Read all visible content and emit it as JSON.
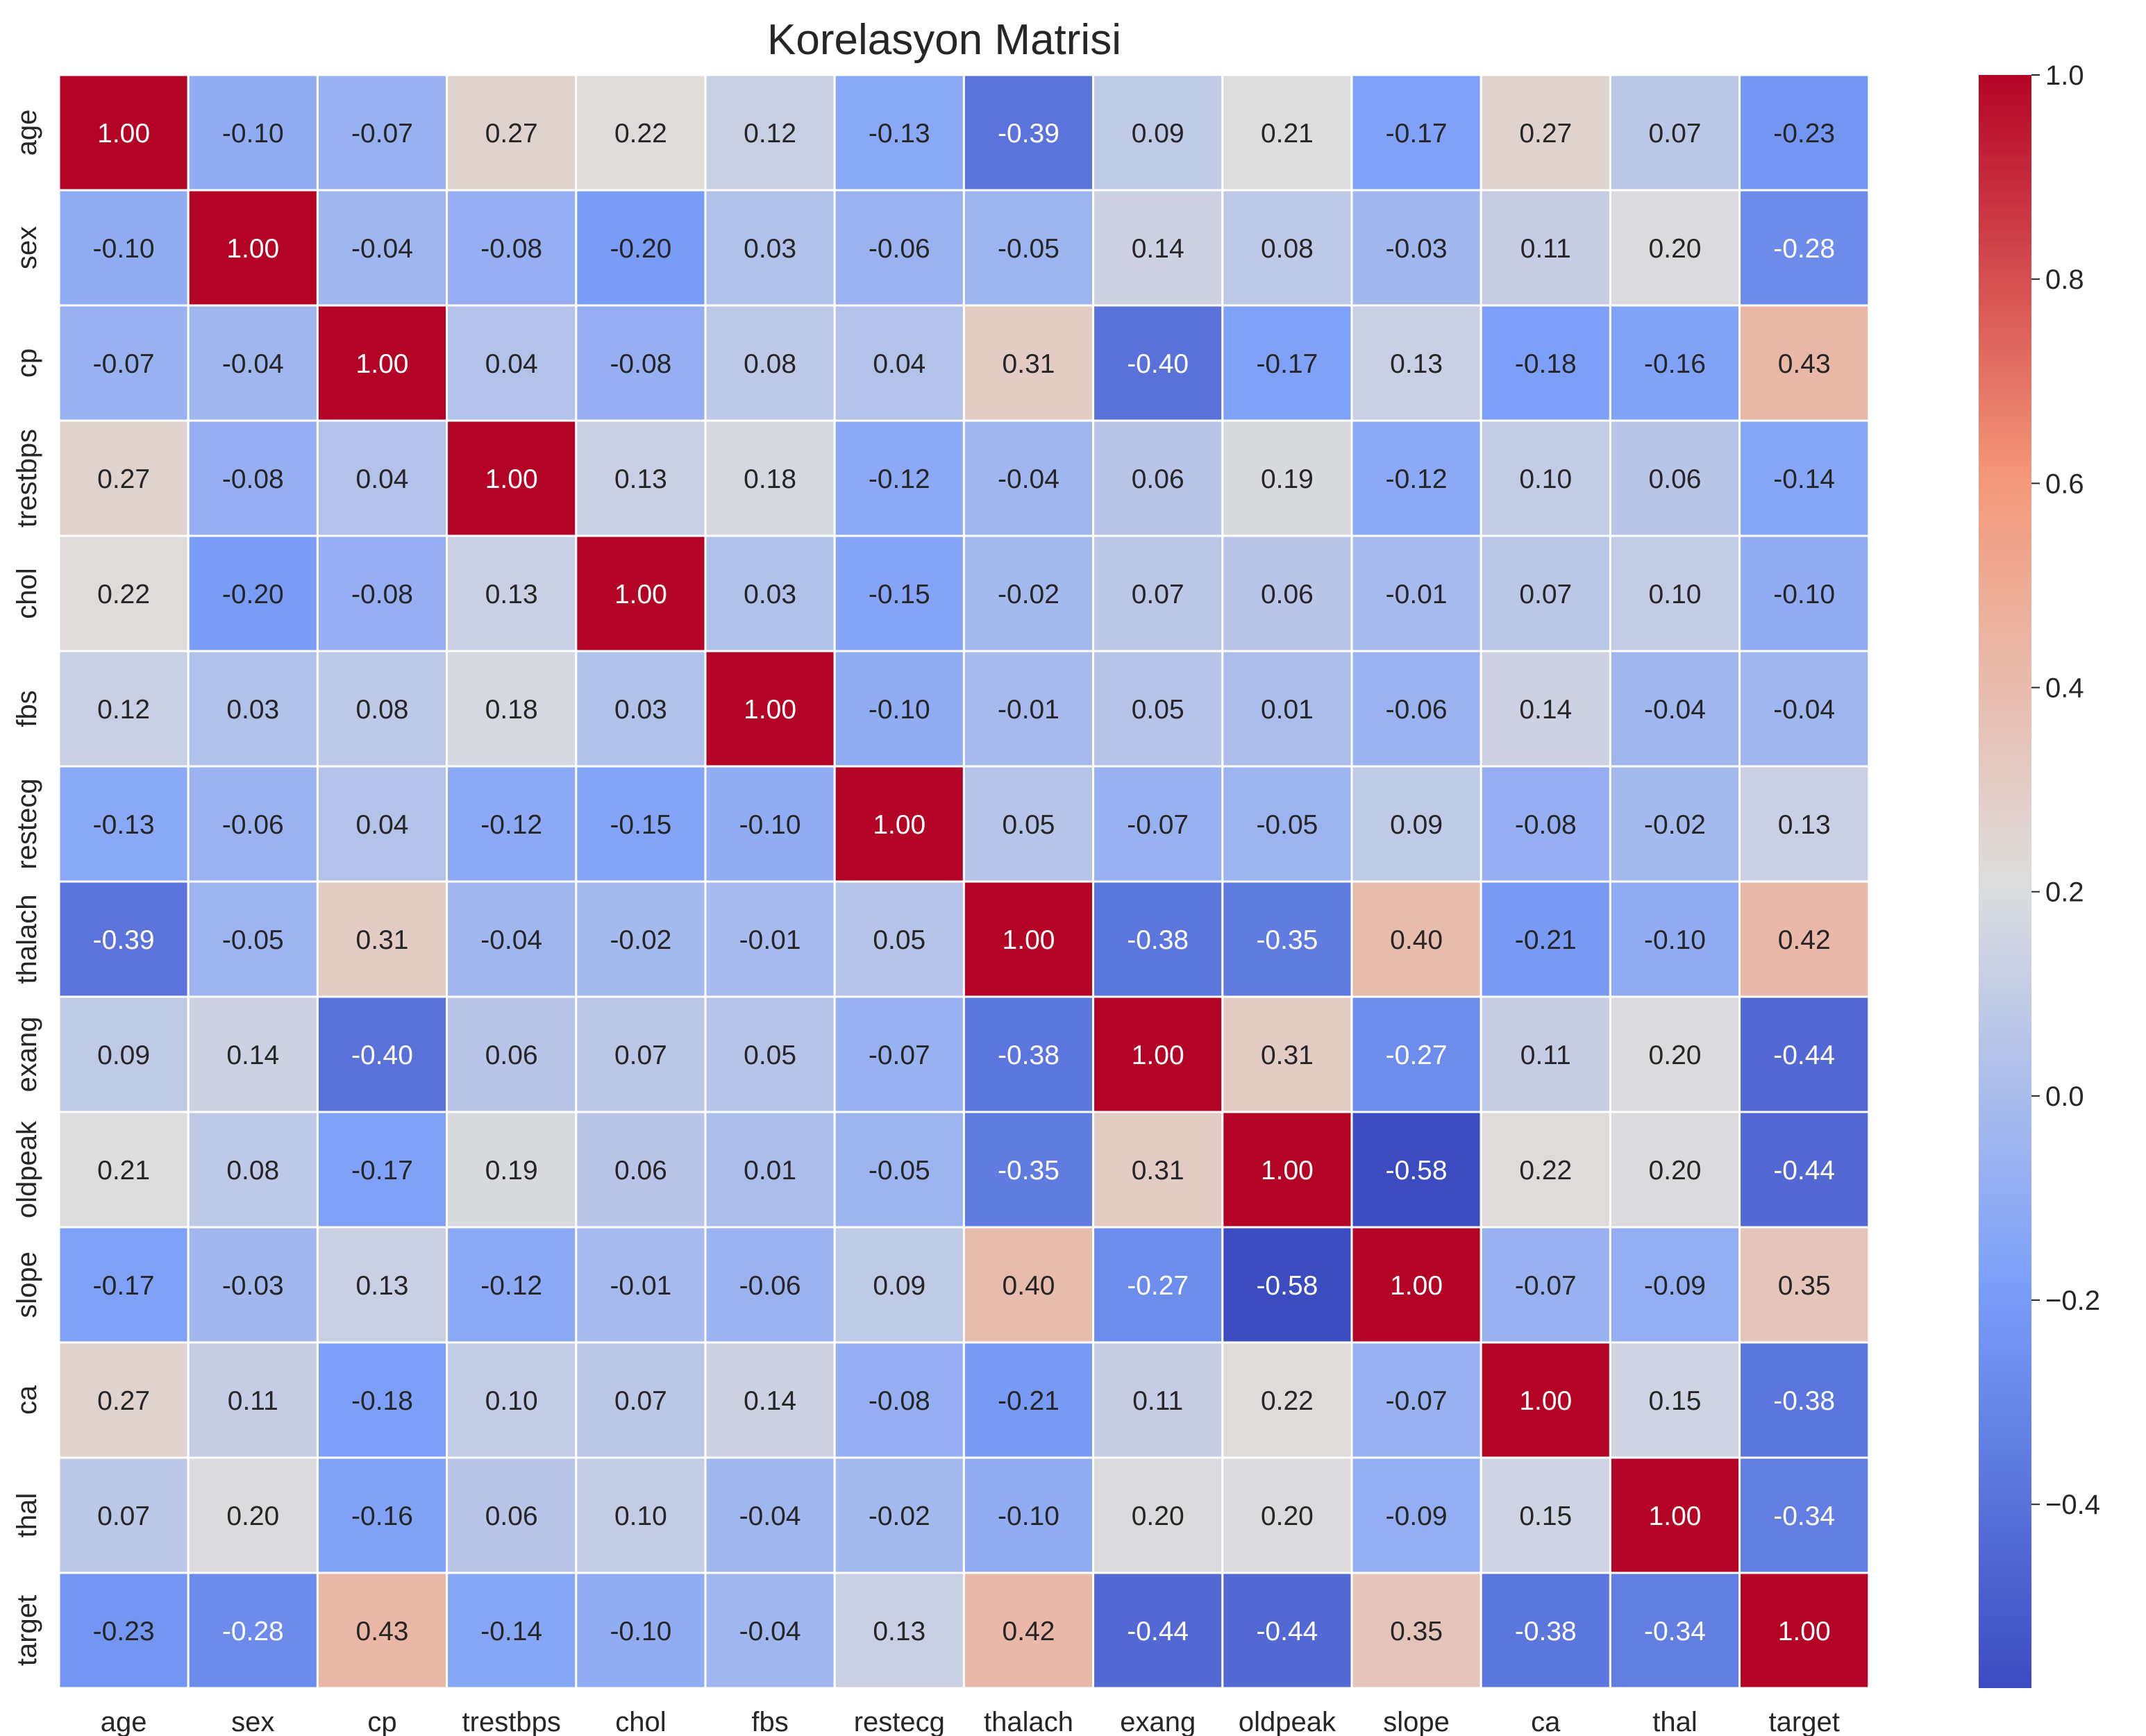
{
  "chart_data": {
    "type": "heatmap",
    "title": "Korelasyon Matrisi",
    "colormap": "coolwarm",
    "value_range": [
      -0.58,
      1.0
    ],
    "colors": {
      "low": "#3b4cc0",
      "mid": "#dddddd",
      "high": "#b40426",
      "cell_border": "#ffffff",
      "text": "#262626",
      "text_on_dark": "#ffffff"
    },
    "xlabel": "",
    "ylabel": "",
    "x_categories": [
      "age",
      "sex",
      "cp",
      "trestbps",
      "chol",
      "fbs",
      "restecg",
      "thalach",
      "exang",
      "oldpeak",
      "slope",
      "ca",
      "thal",
      "target"
    ],
    "y_categories": [
      "age",
      "sex",
      "cp",
      "trestbps",
      "chol",
      "fbs",
      "restecg",
      "thalach",
      "exang",
      "oldpeak",
      "slope",
      "ca",
      "thal",
      "target"
    ],
    "values": [
      [
        1.0,
        -0.1,
        -0.07,
        0.27,
        0.22,
        0.12,
        -0.13,
        -0.39,
        0.09,
        0.21,
        -0.17,
        0.27,
        0.07,
        -0.23
      ],
      [
        -0.1,
        1.0,
        -0.04,
        -0.08,
        -0.2,
        0.03,
        -0.06,
        -0.05,
        0.14,
        0.08,
        -0.03,
        0.11,
        0.2,
        -0.28
      ],
      [
        -0.07,
        -0.04,
        1.0,
        0.04,
        -0.08,
        0.08,
        0.04,
        0.31,
        -0.4,
        -0.17,
        0.13,
        -0.18,
        -0.16,
        0.43
      ],
      [
        0.27,
        -0.08,
        0.04,
        1.0,
        0.13,
        0.18,
        -0.12,
        -0.04,
        0.06,
        0.19,
        -0.12,
        0.1,
        0.06,
        -0.14
      ],
      [
        0.22,
        -0.2,
        -0.08,
        0.13,
        1.0,
        0.03,
        -0.15,
        -0.02,
        0.07,
        0.06,
        -0.01,
        0.07,
        0.1,
        -0.1
      ],
      [
        0.12,
        0.03,
        0.08,
        0.18,
        0.03,
        1.0,
        -0.1,
        -0.01,
        0.05,
        0.01,
        -0.06,
        0.14,
        -0.04,
        -0.04
      ],
      [
        -0.13,
        -0.06,
        0.04,
        -0.12,
        -0.15,
        -0.1,
        1.0,
        0.05,
        -0.07,
        -0.05,
        0.09,
        -0.08,
        -0.02,
        0.13
      ],
      [
        -0.39,
        -0.05,
        0.31,
        -0.04,
        -0.02,
        -0.01,
        0.05,
        1.0,
        -0.38,
        -0.35,
        0.4,
        -0.21,
        -0.1,
        0.42
      ],
      [
        0.09,
        0.14,
        -0.4,
        0.06,
        0.07,
        0.05,
        -0.07,
        -0.38,
        1.0,
        0.31,
        -0.27,
        0.11,
        0.2,
        -0.44
      ],
      [
        0.21,
        0.08,
        -0.17,
        0.19,
        0.06,
        0.01,
        -0.05,
        -0.35,
        0.31,
        1.0,
        -0.58,
        0.22,
        0.2,
        -0.44
      ],
      [
        -0.17,
        -0.03,
        0.13,
        -0.12,
        -0.01,
        -0.06,
        0.09,
        0.4,
        -0.27,
        -0.58,
        1.0,
        -0.07,
        -0.09,
        0.35
      ],
      [
        0.27,
        0.11,
        -0.18,
        0.1,
        0.07,
        0.14,
        -0.08,
        -0.21,
        0.11,
        0.22,
        -0.07,
        1.0,
        0.15,
        -0.38
      ],
      [
        0.07,
        0.2,
        -0.16,
        0.06,
        0.1,
        -0.04,
        -0.02,
        -0.1,
        0.2,
        0.2,
        -0.09,
        0.15,
        1.0,
        -0.34
      ],
      [
        -0.23,
        -0.28,
        0.43,
        -0.14,
        -0.1,
        -0.04,
        0.13,
        0.42,
        -0.44,
        -0.44,
        0.35,
        -0.38,
        -0.34,
        1.0
      ]
    ],
    "colorbar": {
      "ticks": [
        1.0,
        0.8,
        0.6,
        0.4,
        0.2,
        0.0,
        -0.2,
        -0.4
      ],
      "tick_labels": [
        "1.0",
        "0.8",
        "0.6",
        "0.4",
        "0.2",
        "0.0",
        "−0.2",
        "−0.4"
      ],
      "range": [
        -0.58,
        1.0
      ]
    }
  }
}
